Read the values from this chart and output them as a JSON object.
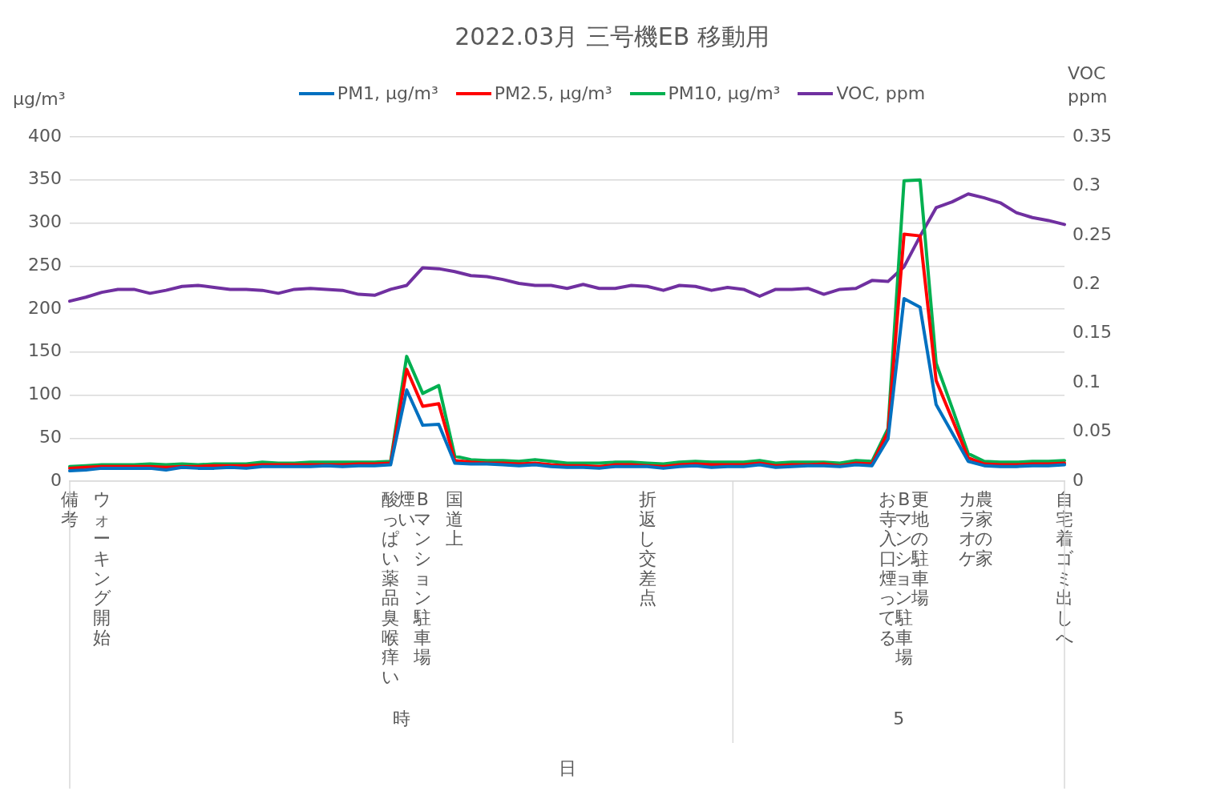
{
  "chart_data": {
    "type": "line",
    "title": "2022.03月 三号機EB 移動用",
    "ylabel": "μg/m³",
    "y2label": "VOC\nppm",
    "annotations": [
      "時",
      "5",
      "日"
    ],
    "categories": [
      "備考",
      null,
      "ウォーキング開始",
      null,
      null,
      null,
      null,
      null,
      null,
      null,
      null,
      null,
      null,
      null,
      null,
      null,
      null,
      null,
      null,
      null,
      "酸っぱい薬品臭喉痒い",
      "煙い",
      "Bマンション駐車場",
      null,
      "国道上",
      null,
      null,
      null,
      null,
      null,
      null,
      null,
      null,
      null,
      null,
      null,
      "折返し交差点",
      null,
      null,
      null,
      null,
      null,
      null,
      null,
      null,
      null,
      null,
      null,
      null,
      null,
      null,
      "お寺入口煙ってる",
      "Bマンション駐車場",
      "更地の駐車場",
      null,
      null,
      "カラオケ",
      "農家の家",
      null,
      null,
      null,
      null,
      "自宅着ゴミ出しへ"
    ],
    "series": [
      {
        "name": "PM1, μg/m³",
        "color": "#0070c0",
        "values": [
          12,
          13,
          15,
          15,
          15,
          15,
          13,
          16,
          15,
          15,
          16,
          15,
          17,
          17,
          17,
          17,
          18,
          17,
          18,
          18,
          19,
          106,
          65,
          66,
          21,
          20,
          20,
          19,
          18,
          19,
          17,
          16,
          16,
          15,
          17,
          17,
          17,
          15,
          17,
          18,
          16,
          17,
          17,
          19,
          16,
          17,
          18,
          18,
          17,
          19,
          18,
          49,
          212,
          202,
          89,
          56,
          23,
          18,
          17,
          17,
          18,
          18,
          19
        ]
      },
      {
        "name": "PM2.5, μg/m³",
        "color": "#ff0000",
        "values": [
          15,
          16,
          17,
          17,
          17,
          17,
          16,
          17,
          17,
          18,
          18,
          18,
          19,
          19,
          19,
          19,
          19,
          19,
          20,
          20,
          21,
          130,
          87,
          90,
          24,
          22,
          21,
          21,
          20,
          21,
          19,
          18,
          18,
          17,
          19,
          19,
          18,
          17,
          19,
          20,
          19,
          19,
          19,
          21,
          18,
          19,
          19,
          20,
          18,
          21,
          20,
          57,
          287,
          285,
          117,
          72,
          27,
          20,
          19,
          19,
          20,
          20,
          21
        ]
      },
      {
        "name": "PM10, μg/m³",
        "color": "#00b050",
        "values": [
          17,
          18,
          19,
          19,
          19,
          20,
          19,
          20,
          19,
          20,
          20,
          20,
          22,
          21,
          21,
          22,
          22,
          22,
          22,
          22,
          23,
          145,
          102,
          111,
          29,
          25,
          24,
          24,
          23,
          25,
          23,
          21,
          21,
          21,
          22,
          22,
          21,
          20,
          22,
          23,
          22,
          22,
          22,
          24,
          21,
          22,
          22,
          22,
          21,
          24,
          23,
          61,
          349,
          350,
          137,
          85,
          32,
          23,
          22,
          22,
          23,
          23,
          24
        ]
      },
      {
        "name": "VOC, ppm",
        "color": "#7030a0",
        "axis": "y2",
        "values": [
          0.183,
          0.187,
          0.192,
          0.195,
          0.195,
          0.191,
          0.194,
          0.198,
          0.199,
          0.197,
          0.195,
          0.195,
          0.194,
          0.191,
          0.195,
          0.196,
          0.195,
          0.194,
          0.19,
          0.189,
          0.195,
          0.199,
          0.217,
          0.216,
          0.213,
          0.209,
          0.208,
          0.205,
          0.201,
          0.199,
          0.199,
          0.196,
          0.2,
          0.196,
          0.196,
          0.199,
          0.198,
          0.194,
          0.199,
          0.198,
          0.194,
          0.197,
          0.195,
          0.188,
          0.195,
          0.195,
          0.196,
          0.19,
          0.195,
          0.196,
          0.204,
          0.203,
          0.218,
          0.249,
          0.278,
          0.284,
          0.292,
          0.288,
          0.283,
          0.273,
          0.268,
          0.265,
          0.261
        ]
      }
    ],
    "ylim": [
      0,
      400
    ],
    "yticks": [
      0,
      50,
      100,
      150,
      200,
      250,
      300,
      350,
      400
    ],
    "y2lim": [
      0,
      0.35
    ],
    "y2ticks": [
      0,
      0.05,
      0.1,
      0.15,
      0.2,
      0.25,
      0.3,
      0.35
    ],
    "grid": "y",
    "legend": "top"
  }
}
